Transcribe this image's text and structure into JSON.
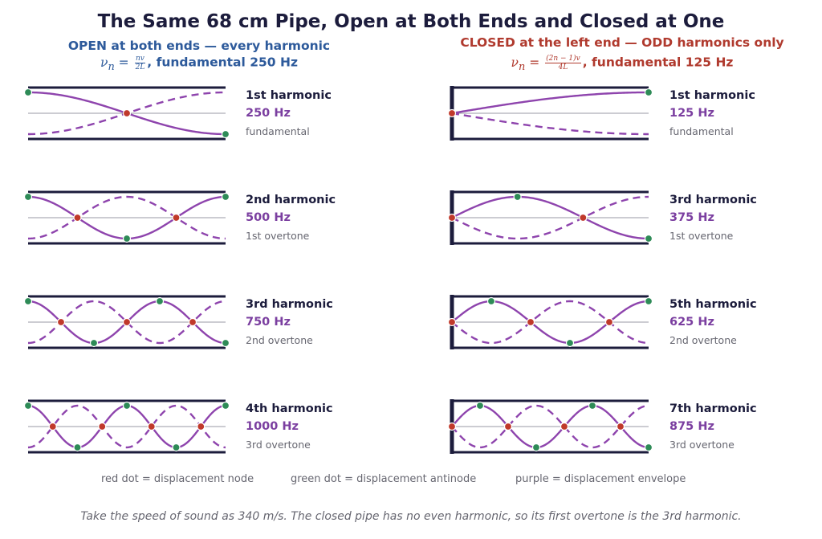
{
  "title": "The Same 68 cm Pipe, Open at Both Ends and Closed at One",
  "open": {
    "heading": "OPEN at both ends  —  every harmonic",
    "formula": {
      "lhs": "ν",
      "sub": "n",
      "num": "nv",
      "den": "2L"
    },
    "fundamental_text": ",  fundamental 250 Hz",
    "color": "#2d5a9b",
    "modes": [
      {
        "n": 1,
        "name": "1st harmonic",
        "freq": "250 Hz",
        "overtone": "fundamental"
      },
      {
        "n": 2,
        "name": "2nd harmonic",
        "freq": "500 Hz",
        "overtone": "1st overtone"
      },
      {
        "n": 3,
        "name": "3rd harmonic",
        "freq": "750 Hz",
        "overtone": "2nd overtone"
      },
      {
        "n": 4,
        "name": "4th harmonic",
        "freq": "1000 Hz",
        "overtone": "3rd overtone"
      }
    ]
  },
  "closed": {
    "heading": "CLOSED at the left end  —  ODD harmonics only",
    "formula": {
      "lhs": "ν",
      "sub": "n",
      "num": "(2n − 1)v",
      "den": "4L"
    },
    "fundamental_text": ",  fundamental 125 Hz",
    "color": "#b03a2e",
    "modes": [
      {
        "n": 1,
        "name": "1st harmonic",
        "freq": "125 Hz",
        "overtone": "fundamental"
      },
      {
        "n": 3,
        "name": "3rd harmonic",
        "freq": "375 Hz",
        "overtone": "1st overtone"
      },
      {
        "n": 5,
        "name": "5th harmonic",
        "freq": "625 Hz",
        "overtone": "2nd overtone"
      },
      {
        "n": 7,
        "name": "7th harmonic",
        "freq": "875 Hz",
        "overtone": "3rd overtone"
      }
    ]
  },
  "legend": {
    "node": "red dot = displacement node",
    "antinode": "green dot = displacement antinode",
    "envelope": "purple = displacement envelope"
  },
  "colors": {
    "node": "#c0392b",
    "antinode": "#2e8b57",
    "envelope": "#8e44ad",
    "pipe": "#1c1c3c",
    "axis": "#9a9aa6"
  },
  "footnote": "Take the speed of sound as 340 m/s. The closed pipe has no even harmonic, so its first overtone is the 3rd harmonic."
}
